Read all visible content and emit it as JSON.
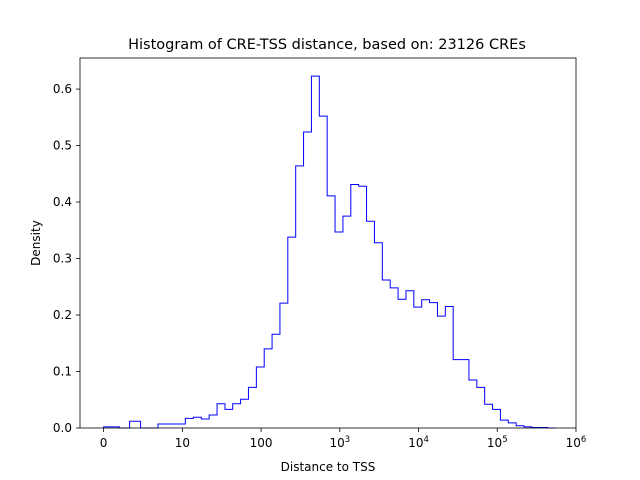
{
  "chart_data": {
    "type": "histogram",
    "title": "Histogram of CRE-TSS distance, based on: 23126 CREs",
    "xlabel": "Distance to TSS",
    "ylabel": "Density",
    "x_scale": "symlog",
    "x_linthresh": 10,
    "xlim": [
      -3.0,
      1000000
    ],
    "ylim": [
      0,
      0.655
    ],
    "x_ticks": [
      {
        "value": 0,
        "label": "0"
      },
      {
        "value": 10,
        "label": "10"
      },
      {
        "value": 100,
        "label": "100"
      },
      {
        "value": 1000,
        "base": "10",
        "exp": "3"
      },
      {
        "value": 10000,
        "base": "10",
        "exp": "4"
      },
      {
        "value": 100000,
        "base": "10",
        "exp": "5"
      },
      {
        "value": 1000000,
        "base": "10",
        "exp": "6"
      }
    ],
    "y_ticks": [
      "0.0",
      "0.1",
      "0.2",
      "0.3",
      "0.4",
      "0.5",
      "0.6"
    ],
    "y_tick_values": [
      0.0,
      0.1,
      0.2,
      0.3,
      0.4,
      0.5,
      0.6
    ],
    "grid": false,
    "line_color": "#0000ff",
    "bin_edges": [
      0,
      2,
      3.3,
      4.7,
      6.9,
      8.9,
      10.9,
      13.8,
      17.4,
      21.9,
      27.6,
      34.8,
      43.6,
      54.9,
      69.1,
      87.1,
      109.6,
      137.9,
      173.6,
      218.6,
      275.2,
      346.4,
      436.1,
      549.1,
      691.2,
      870.1,
      1095.5,
      1379.4,
      1736.7,
      2186.5,
      2753.0,
      3466.5,
      4364.6,
      5495.5,
      6919.3,
      8712.2,
      10968,
      13808,
      17383,
      21883,
      27546,
      34672,
      43651,
      54954,
      69183,
      87096,
      109648,
      138038,
      173780,
      218776,
      275423,
      346737,
      436516,
      549541
    ],
    "densities": [
      0.002,
      0.0,
      0.012,
      0.0,
      0.007,
      0.007,
      0.017,
      0.019,
      0.016,
      0.023,
      0.043,
      0.033,
      0.043,
      0.051,
      0.072,
      0.108,
      0.14,
      0.166,
      0.221,
      0.338,
      0.464,
      0.524,
      0.623,
      0.552,
      0.411,
      0.347,
      0.375,
      0.431,
      0.428,
      0.366,
      0.328,
      0.262,
      0.248,
      0.228,
      0.243,
      0.214,
      0.227,
      0.222,
      0.198,
      0.215,
      0.121,
      0.121,
      0.085,
      0.072,
      0.042,
      0.033,
      0.014,
      0.009,
      0.004,
      0.002,
      0.001,
      0.001,
      0.0
    ]
  }
}
